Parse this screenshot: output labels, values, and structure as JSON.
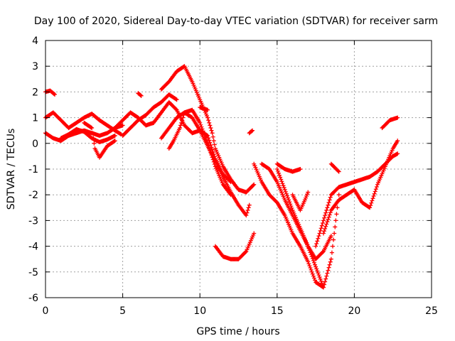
{
  "chart_data": {
    "type": "scatter",
    "title": "Day 100 of 2020, Sidereal Day-to-day VTEC variation (SDTVAR) for receiver sarm",
    "xlabel": "GPS time / hours",
    "ylabel": "SDTVAR / TECUs",
    "xlim": [
      0,
      25
    ],
    "ylim": [
      -6,
      4
    ],
    "x_ticks": [
      "0",
      "5",
      "10",
      "15",
      "20",
      "25"
    ],
    "y_ticks": [
      "4",
      "3",
      "2",
      "1",
      "0",
      "-1",
      "-2",
      "-3",
      "-4",
      "-5",
      "-6"
    ],
    "grid": true,
    "marker": "plus",
    "color": "#ff0000",
    "series": [
      {
        "name": "track-1",
        "x": [
          0.0,
          0.3,
          0.6
        ],
        "y": [
          2.0,
          2.05,
          1.9
        ]
      },
      {
        "name": "track-2",
        "x": [
          0.0,
          0.5,
          1.0,
          1.5,
          2.0,
          2.5,
          3.0,
          3.5,
          4.0,
          4.5,
          4.9
        ],
        "y": [
          1.0,
          1.2,
          0.9,
          0.6,
          0.8,
          1.0,
          1.15,
          0.9,
          0.7,
          0.5,
          0.35
        ]
      },
      {
        "name": "track-3",
        "x": [
          0.0,
          0.5,
          1.0,
          1.5,
          2.0,
          2.5,
          3.0,
          3.5,
          4.0,
          4.5,
          5.0
        ],
        "y": [
          0.4,
          0.2,
          0.1,
          0.3,
          0.4,
          0.5,
          0.4,
          0.3,
          0.4,
          0.6,
          0.7
        ]
      },
      {
        "name": "track-4",
        "x": [
          1.0,
          1.5,
          2.0,
          2.5,
          3.0,
          3.5,
          4.0,
          4.5
        ],
        "y": [
          0.2,
          0.35,
          0.55,
          0.45,
          0.2,
          0.05,
          0.15,
          0.3
        ]
      },
      {
        "name": "track-5",
        "x": [
          2.5,
          3.0,
          3.2,
          3.5,
          4.0,
          4.5
        ],
        "y": [
          0.8,
          0.6,
          -0.2,
          -0.55,
          -0.1,
          0.1
        ]
      },
      {
        "name": "track-6",
        "x": [
          4.5,
          5.0,
          5.5,
          6.0,
          6.5,
          7.0
        ],
        "y": [
          0.6,
          0.9,
          1.2,
          1.0,
          0.7,
          0.8
        ]
      },
      {
        "name": "track-7",
        "x": [
          5.0,
          5.5,
          6.0,
          6.5,
          7.0,
          7.5,
          8.0,
          8.5
        ],
        "y": [
          0.3,
          0.6,
          0.9,
          1.1,
          1.4,
          1.6,
          1.9,
          1.7
        ]
      },
      {
        "name": "track-8",
        "x": [
          6.0,
          6.2
        ],
        "y": [
          1.95,
          1.85
        ]
      },
      {
        "name": "track-9",
        "x": [
          7.5,
          8.0,
          8.5,
          9.0,
          9.5,
          10.0,
          10.5,
          10.8,
          11.0,
          11.5,
          12.0,
          12.5,
          13.0,
          13.5
        ],
        "y": [
          2.1,
          2.4,
          2.8,
          3.0,
          2.4,
          1.7,
          1.0,
          0.4,
          -0.2,
          -0.9,
          -1.4,
          -1.8,
          -1.9,
          -1.6
        ]
      },
      {
        "name": "track-10",
        "x": [
          7.5,
          8.0,
          8.5,
          9.0,
          9.5,
          10.0,
          10.5,
          11.0,
          11.5,
          12.0,
          12.5,
          13.0,
          13.2
        ],
        "y": [
          0.2,
          0.6,
          1.0,
          1.2,
          1.0,
          0.5,
          -0.1,
          -0.7,
          -1.3,
          -1.9,
          -2.4,
          -2.8,
          -2.4
        ]
      },
      {
        "name": "track-11",
        "x": [
          8.0,
          8.3,
          8.7,
          9.0,
          9.5,
          10.0,
          10.5,
          11.0,
          11.5,
          12.0
        ],
        "y": [
          -0.2,
          0.1,
          0.6,
          1.2,
          1.3,
          0.8,
          0.0,
          -0.9,
          -1.6,
          -2.0
        ]
      },
      {
        "name": "track-12",
        "x": [
          7.0,
          7.5,
          8.0,
          8.5,
          9.0,
          9.5,
          10.0,
          10.5,
          11.0,
          11.5,
          12.0
        ],
        "y": [
          0.8,
          1.2,
          1.6,
          1.3,
          0.7,
          0.4,
          0.5,
          0.3,
          -0.6,
          -1.2,
          -1.5
        ]
      },
      {
        "name": "track-13",
        "x": [
          10.0,
          10.5
        ],
        "y": [
          1.4,
          1.3
        ]
      },
      {
        "name": "track-14",
        "x": [
          11.0,
          11.5,
          12.0,
          12.5,
          13.0,
          13.5
        ],
        "y": [
          -4.0,
          -4.4,
          -4.5,
          -4.5,
          -4.2,
          -3.5
        ]
      },
      {
        "name": "track-15",
        "x": [
          13.2,
          13.4
        ],
        "y": [
          0.4,
          0.5
        ]
      },
      {
        "name": "track-16",
        "x": [
          13.5,
          14.0,
          14.5,
          15.0,
          15.5,
          16.0,
          16.5,
          17.0,
          17.5,
          18.0,
          18.5,
          19.0
        ],
        "y": [
          -0.8,
          -1.5,
          -2.0,
          -2.3,
          -2.8,
          -3.5,
          -4.0,
          -4.6,
          -5.4,
          -5.6,
          -4.5,
          -2.0
        ]
      },
      {
        "name": "track-17",
        "x": [
          14.0,
          14.5,
          15.0,
          15.5,
          16.0,
          16.5,
          17.0,
          17.5,
          18.0
        ],
        "y": [
          -0.8,
          -1.0,
          -1.5,
          -2.2,
          -2.8,
          -3.4,
          -4.0,
          -4.8,
          -5.6
        ]
      },
      {
        "name": "track-18",
        "x": [
          15.0,
          15.5,
          16.0,
          16.5,
          17.0,
          17.5,
          18.0,
          18.5
        ],
        "y": [
          -1.0,
          -1.8,
          -2.6,
          -3.3,
          -4.0,
          -4.5,
          -4.2,
          -3.6
        ]
      },
      {
        "name": "track-19",
        "x": [
          15.0,
          15.5,
          16.0,
          16.5
        ],
        "y": [
          -0.8,
          -1.0,
          -1.1,
          -1.0
        ]
      },
      {
        "name": "track-20",
        "x": [
          16.0,
          16.5,
          16.8,
          17.0
        ],
        "y": [
          -2.0,
          -2.6,
          -2.2,
          -1.9
        ]
      },
      {
        "name": "track-21",
        "x": [
          17.5,
          18.0,
          18.5,
          19.0,
          19.5,
          20.0,
          20.5,
          21.0,
          21.5,
          22.0,
          22.5,
          22.8
        ],
        "y": [
          -4.0,
          -3.0,
          -2.0,
          -1.7,
          -1.6,
          -1.5,
          -1.4,
          -1.3,
          -1.1,
          -0.8,
          -0.5,
          -0.4
        ]
      },
      {
        "name": "track-22",
        "x": [
          18.0,
          18.5,
          19.0,
          19.5,
          20.0,
          20.5,
          21.0,
          21.5,
          22.0,
          22.5,
          22.8
        ],
        "y": [
          -3.5,
          -2.6,
          -2.2,
          -2.0,
          -1.8,
          -2.3,
          -2.5,
          -1.6,
          -0.9,
          -0.2,
          0.1
        ]
      },
      {
        "name": "track-23",
        "x": [
          18.5,
          19.0
        ],
        "y": [
          -0.8,
          -1.1
        ]
      },
      {
        "name": "track-24",
        "x": [
          21.8,
          22.3,
          22.8
        ],
        "y": [
          0.6,
          0.9,
          1.0
        ]
      }
    ]
  }
}
